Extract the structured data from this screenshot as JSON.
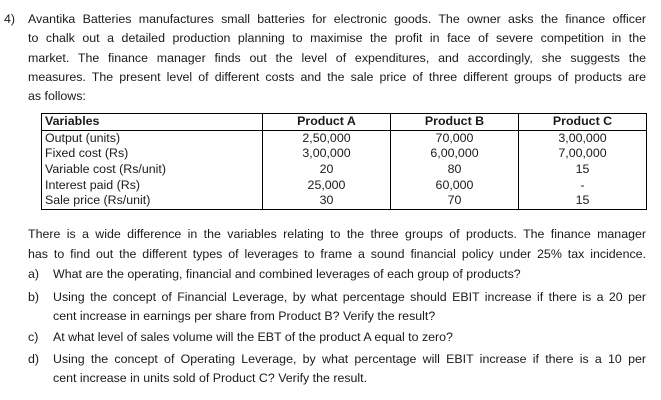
{
  "question": {
    "number": "4)",
    "intro_lines": [
      "Avantika Batteries manufactures small batteries for electronic goods. The owner asks the finance officer",
      "to chalk out a detailed production planning to maximise the profit in face of severe competition in the",
      "market. The finance manager finds out the level of expenditures, and accordingly, she suggests the",
      "measures. The present level of different costs and the sale price of three different groups of products are",
      "as follows:"
    ],
    "table": {
      "headers": [
        "Variables",
        "Product A",
        "Product B",
        "Product C"
      ],
      "rows": [
        [
          "Output (units)",
          "2,50,000",
          "70,000",
          "3,00,000"
        ],
        [
          "Fixed cost (Rs)",
          "3,00,000",
          "6,00,000",
          "7,00,000"
        ],
        [
          "Variable cost (Rs/unit)",
          "20",
          "80",
          "15"
        ],
        [
          "Interest paid (Rs)",
          "25,000",
          "60,000",
          "-"
        ],
        [
          "Sale price (Rs/unit)",
          "30",
          "70",
          "15"
        ]
      ]
    },
    "after_lines": [
      "There is a wide difference in the variables relating to the three groups of products. The finance manager",
      "has to find out the different types of leverages to frame a sound financial policy under 25% tax incidence."
    ],
    "subparts": [
      {
        "letter": "a)",
        "lines": [
          "What are the operating, financial and combined leverages of each group of products?"
        ]
      },
      {
        "letter": "b)",
        "lines": [
          "Using the concept of Financial Leverage, by what percentage should EBIT increase if there is a 20 per",
          "cent increase in earnings per share from Product B? Verify the result?"
        ]
      },
      {
        "letter": "c)",
        "lines": [
          "At what level of sales volume will the EBT of the product A equal to zero?"
        ]
      },
      {
        "letter": "d)",
        "lines": [
          "Using the concept of Operating Leverage, by what percentage will EBIT increase if there is a 10 per",
          "cent increase in units sold of Product C? Verify the result."
        ]
      }
    ]
  }
}
